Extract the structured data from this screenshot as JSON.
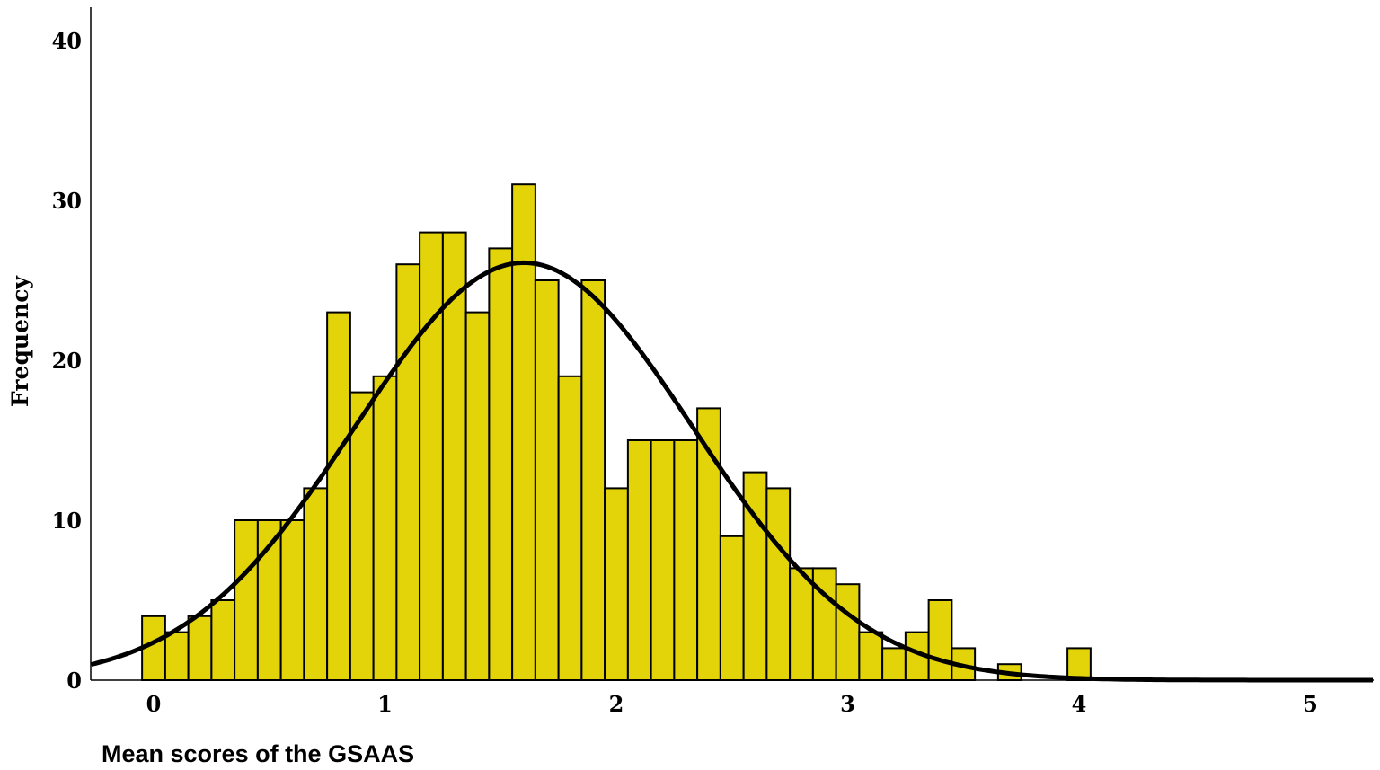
{
  "chart_data": {
    "type": "bar",
    "subtype": "histogram",
    "xlabel": "Mean scores of the GSAAS",
    "ylabel": "Frequency",
    "xlim": [
      -0.27,
      5.27
    ],
    "ylim": [
      0,
      40
    ],
    "x_ticks": [
      "0",
      "1",
      "2",
      "3",
      "4",
      "5"
    ],
    "y_ticks": [
      "0",
      "10",
      "20",
      "30",
      "40"
    ],
    "bin_width": 0.1,
    "bin_starts": [
      -0.05,
      0.05,
      0.15,
      0.25,
      0.35,
      0.45,
      0.55,
      0.65,
      0.75,
      0.85,
      0.95,
      1.05,
      1.15,
      1.25,
      1.35,
      1.45,
      1.55,
      1.65,
      1.75,
      1.85,
      1.95,
      2.05,
      2.15,
      2.25,
      2.35,
      2.45,
      2.55,
      2.65,
      2.75,
      2.85,
      2.95,
      3.05,
      3.15,
      3.25,
      3.35,
      3.45,
      3.55,
      3.65,
      3.75,
      3.85,
      3.95
    ],
    "frequencies": [
      4,
      3,
      4,
      5,
      10,
      10,
      10,
      12,
      23,
      18,
      19,
      26,
      28,
      28,
      23,
      27,
      31,
      25,
      19,
      25,
      12,
      15,
      15,
      15,
      17,
      9,
      13,
      12,
      7,
      7,
      6,
      3,
      2,
      3,
      5,
      2,
      0,
      1,
      0,
      0,
      2
    ],
    "normal_curve": {
      "mean": 1.6,
      "sd": 0.73,
      "peak_frequency": 26.1
    },
    "bar_color": "#e3d40a",
    "grid": false,
    "legend": "none"
  }
}
